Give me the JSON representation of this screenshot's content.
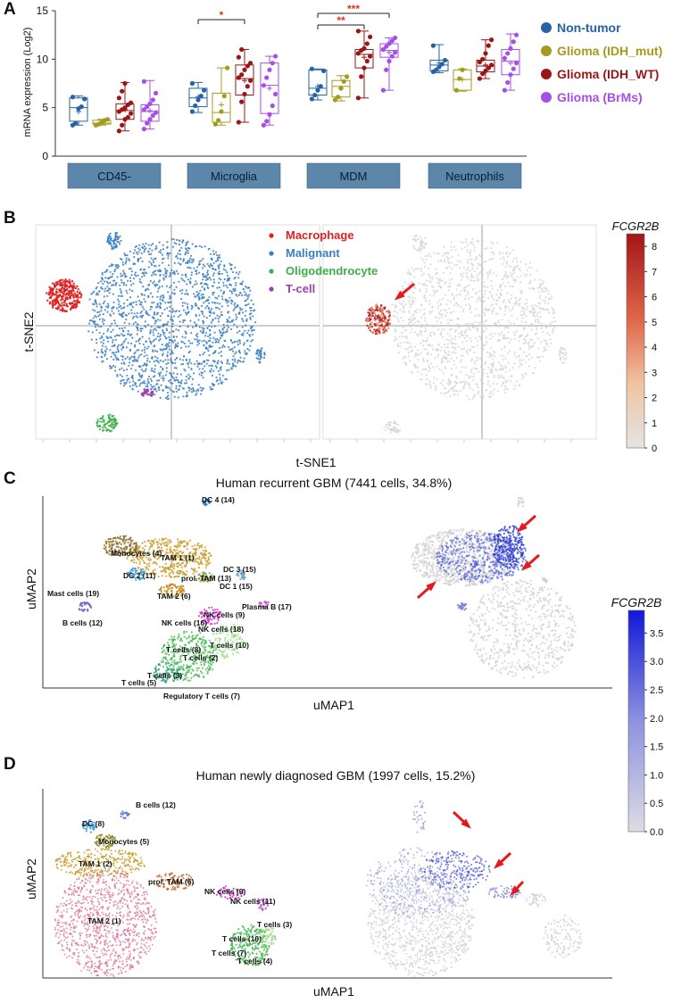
{
  "colors": {
    "non_tumor": "#2563a6",
    "idh_mut": "#a59a1c",
    "idh_wt": "#9b1515",
    "brms": "#a64fe6",
    "macrophage": "#e02020",
    "malignant": "#3a7fc0",
    "oligodendrocyte": "#3fae49",
    "tcell": "#9e3fb0",
    "grey_cells": "#d4d4d4",
    "category_box": "#5c86aa",
    "sig": "#e03020"
  },
  "panels": {
    "a": "A",
    "b": "B",
    "c": "C",
    "d": "D"
  },
  "chart_data": [
    {
      "type": "box",
      "panel": "A",
      "ylabel": "mRNA expression (Log2)",
      "ylim": [
        0,
        15
      ],
      "yticks": [
        0,
        5,
        10,
        15
      ],
      "categories": [
        "CD45-",
        "Microglia",
        "MDM",
        "Neutrophils"
      ],
      "series": [
        {
          "name": "Non-tumor",
          "color_key": "non_tumor",
          "boxes": [
            {
              "min": 3.2,
              "q1": 3.6,
              "median": 5.0,
              "q3": 6.0,
              "max": 6.2,
              "mean": 4.6,
              "points": [
                3.2,
                3.4,
                4.9,
                5.1,
                5.9,
                6.1
              ]
            },
            {
              "min": 4.5,
              "q1": 5.1,
              "median": 6.0,
              "q3": 7.0,
              "max": 7.6,
              "mean": 6.1,
              "points": [
                4.6,
                5.2,
                5.8,
                6.2,
                6.8,
                7.5
              ]
            },
            {
              "min": 5.8,
              "q1": 6.3,
              "median": 7.0,
              "q3": 8.9,
              "max": 9.0,
              "mean": 7.2,
              "points": [
                5.9,
                6.3,
                6.8,
                7.2,
                8.8,
                9.0
              ]
            },
            {
              "min": 8.6,
              "q1": 8.8,
              "median": 9.4,
              "q3": 9.9,
              "max": 11.5,
              "mean": 9.6,
              "points": [
                8.7,
                8.9,
                9.2,
                9.5,
                9.9,
                11.4
              ]
            }
          ]
        },
        {
          "name": "Glioma (IDH_mut)",
          "color_key": "idh_mut",
          "boxes": [
            {
              "min": 3.2,
              "q1": 3.3,
              "median": 3.4,
              "q3": 3.7,
              "max": 3.8,
              "mean": 3.5,
              "points": [
                3.2,
                3.3,
                3.5,
                3.7,
                3.8
              ]
            },
            {
              "min": 3.2,
              "q1": 3.5,
              "median": 4.5,
              "q3": 6.5,
              "max": 9.1,
              "mean": 5.3,
              "points": [
                3.3,
                3.7,
                4.6,
                6.2,
                9.1
              ]
            },
            {
              "min": 5.7,
              "q1": 6.1,
              "median": 7.2,
              "q3": 7.8,
              "max": 8.3,
              "mean": 7.0,
              "points": [
                5.8,
                6.1,
                7.0,
                7.7,
                8.2
              ]
            },
            {
              "min": 6.7,
              "q1": 6.8,
              "median": 7.9,
              "q3": 8.9,
              "max": 9.0,
              "mean": 7.9,
              "points": [
                6.8,
                8.0,
                8.9
              ]
            }
          ]
        },
        {
          "name": "Glioma (IDH_WT)",
          "color_key": "idh_wt",
          "boxes": [
            {
              "min": 2.6,
              "q1": 3.8,
              "median": 4.7,
              "q3": 5.4,
              "max": 7.6,
              "mean": 4.8,
              "points": [
                2.6,
                3.2,
                3.8,
                4.0,
                4.4,
                4.6,
                4.8,
                5.0,
                5.3,
                5.5,
                6.0,
                6.7,
                7.5
              ]
            },
            {
              "min": 3.5,
              "q1": 6.3,
              "median": 8.0,
              "q3": 9.4,
              "max": 11.0,
              "mean": 7.8,
              "points": [
                3.5,
                5.6,
                6.4,
                7.2,
                7.8,
                8.1,
                8.4,
                8.9,
                9.3,
                9.6,
                10.2,
                11.0
              ]
            },
            {
              "min": 6.0,
              "q1": 9.1,
              "median": 10.5,
              "q3": 11.0,
              "max": 12.9,
              "mean": 10.2,
              "points": [
                6.0,
                8.2,
                9.1,
                9.8,
                10.3,
                10.6,
                10.9,
                11.1,
                11.6,
                12.3,
                12.9
              ]
            },
            {
              "min": 8.0,
              "q1": 8.7,
              "median": 9.3,
              "q3": 9.9,
              "max": 12.0,
              "mean": 9.4,
              "points": [
                8.0,
                8.5,
                8.8,
                9.1,
                9.4,
                9.7,
                10.0,
                10.6,
                11.4,
                12.0
              ]
            }
          ]
        },
        {
          "name": "Glioma (BrMs)",
          "color_key": "brms",
          "boxes": [
            {
              "min": 2.8,
              "q1": 3.6,
              "median": 4.6,
              "q3": 5.3,
              "max": 7.8,
              "mean": 4.7,
              "points": [
                2.8,
                3.4,
                3.8,
                4.2,
                4.5,
                4.8,
                5.1,
                5.4,
                5.8,
                6.5,
                7.7
              ]
            },
            {
              "min": 3.2,
              "q1": 4.4,
              "median": 7.3,
              "q3": 9.6,
              "max": 10.3,
              "mean": 7.0,
              "points": [
                3.2,
                3.6,
                4.3,
                5.2,
                6.4,
                7.3,
                8.1,
                8.9,
                9.6,
                10.3
              ]
            },
            {
              "min": 6.8,
              "q1": 10.2,
              "median": 10.9,
              "q3": 11.6,
              "max": 12.2,
              "mean": 10.7,
              "points": [
                6.8,
                8.9,
                9.8,
                10.3,
                10.7,
                11.0,
                11.3,
                11.6,
                11.9,
                12.2
              ]
            },
            {
              "min": 6.8,
              "q1": 8.4,
              "median": 9.8,
              "q3": 11.0,
              "max": 12.6,
              "mean": 9.6,
              "points": [
                6.8,
                7.6,
                8.4,
                9.0,
                9.6,
                10.1,
                10.6,
                11.1,
                11.8,
                12.5
              ]
            }
          ]
        }
      ],
      "significance": [
        {
          "category": "Microglia",
          "from": "Non-tumor",
          "to": "Glioma (IDH_WT)",
          "label": "*"
        },
        {
          "category": "MDM",
          "from": "Non-tumor",
          "to": "Glioma (IDH_WT)",
          "label": "**"
        },
        {
          "category": "MDM",
          "from": "Non-tumor",
          "to": "Glioma (BrMs)",
          "label": "***"
        }
      ],
      "legend": [
        "Non-tumor",
        "Glioma (IDH_mut)",
        "Glioma (IDH_WT)",
        "Glioma (BrMs)"
      ]
    },
    {
      "type": "scatter",
      "panel": "B",
      "xlabel": "t-SNE1",
      "ylabel": "t-SNE2",
      "legend": [
        {
          "label": "Macrophage",
          "color_key": "macrophage"
        },
        {
          "label": "Malignant",
          "color_key": "malignant"
        },
        {
          "label": "Oligodendrocyte",
          "color_key": "oligodendrocyte"
        },
        {
          "label": "T-cell",
          "color_key": "tcell"
        }
      ],
      "colorbar": {
        "title": "FCGR2B",
        "ticks": [
          0,
          1,
          2,
          3,
          4,
          5,
          6,
          7,
          8
        ],
        "range": [
          0,
          8.5
        ]
      }
    },
    {
      "type": "scatter",
      "panel": "C",
      "title": "Human recurrent GBM (7441 cells, 34.8%)",
      "xlabel": "uMAP1",
      "ylabel": "uMAP2",
      "clusters": [
        "DC 4 (14)",
        "Monocytes (4)",
        "TAM 1 (1)",
        "DC 3 (15)",
        "prol. TAM (13)",
        "DC 1 (15)",
        "DC 2 (11)",
        "TAM 2 (6)",
        "Mast cells (19)",
        "Plasma B (17)",
        "NK cells (9)",
        "NK cells (16)",
        "NK cells (18)",
        "B cells (12)",
        "T cells (10)",
        "T cells (8)",
        "T cells (2)",
        "T cells (3)",
        "T cells (5)",
        "Regulatory T cells (7)"
      ],
      "colorbar": {
        "title": "FCGR2B",
        "ticks": [
          "0.0",
          "0.5",
          "1.0",
          "1.5",
          "2.0",
          "2.5",
          "3.0",
          "3.5"
        ],
        "range": [
          0,
          3.9
        ]
      }
    },
    {
      "type": "scatter",
      "panel": "D",
      "title": "Human newly diagnosed GBM (1997 cells, 15.2%)",
      "xlabel": "uMAP1",
      "ylabel": "uMAP2",
      "clusters": [
        "B cells (12)",
        "DC (8)",
        "Monocytes (5)",
        "TAM 1 (2)",
        "prol. TAM (6)",
        "NK cells (9)",
        "NK cells (11)",
        "TAM 2 (1)",
        "T cells (3)",
        "T cells (10)",
        "T cells (7)",
        "T cells (4)"
      ]
    }
  ]
}
